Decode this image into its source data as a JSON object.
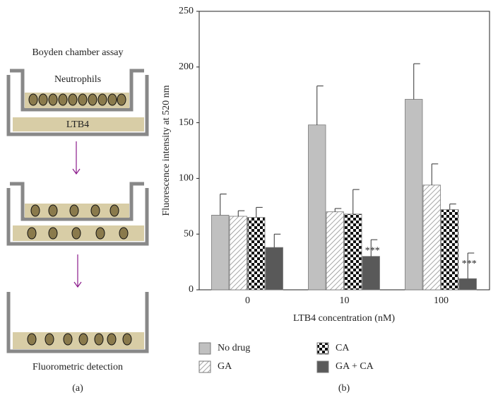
{
  "diagram": {
    "title": "Boyden chamber assay",
    "cells_label": "Neutrophils",
    "medium_label": "LTB4",
    "detection_label": "Fluorometric detection",
    "panel_label": "(a)"
  },
  "chart_data": {
    "type": "bar",
    "panel_label": "(b)",
    "x_label": "LTB4 concentration (nM)",
    "y_label": "Fluorescence intensity at 520 nm",
    "categories": [
      "0",
      "10",
      "100"
    ],
    "series": [
      {
        "name": "No drug",
        "color": "#c0c0c0",
        "values": [
          67,
          148,
          171
        ],
        "errors": [
          19,
          35,
          32
        ]
      },
      {
        "name": "GA",
        "color": "#ffffff",
        "pattern": "hatch",
        "values": [
          66,
          70,
          94
        ],
        "errors": [
          5,
          3,
          19
        ]
      },
      {
        "name": "CA",
        "color": "#ffffff",
        "pattern": "checker",
        "values": [
          65,
          68,
          72
        ],
        "errors": [
          9,
          22,
          5
        ]
      },
      {
        "name": "GA + CA",
        "color": "#595959",
        "values": [
          38,
          30,
          10
        ],
        "errors": [
          12,
          15,
          23
        ]
      }
    ],
    "annotations": [
      "***",
      "***"
    ],
    "ylim": [
      0,
      250
    ],
    "yticks": [
      0,
      50,
      100,
      150,
      200,
      250
    ],
    "grid": false
  }
}
